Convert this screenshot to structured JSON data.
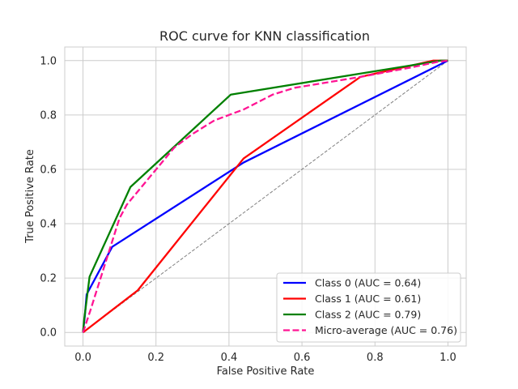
{
  "chart_data": {
    "type": "line",
    "title": "ROC curve for KNN classification",
    "xlabel": "False Positive Rate",
    "ylabel": "True Positive Rate",
    "xlim": [
      -0.05,
      1.05
    ],
    "ylim": [
      -0.05,
      1.05
    ],
    "xticks": [
      "0.0",
      "0.2",
      "0.4",
      "0.6",
      "0.8",
      "1.0"
    ],
    "yticks": [
      "0.0",
      "0.2",
      "0.4",
      "0.6",
      "0.8",
      "1.0"
    ],
    "grid": true,
    "legend_position": "lower right",
    "series": [
      {
        "name": "Class 0 (AUC = 0.64)",
        "color": "#0000ff",
        "dash": "solid",
        "points": [
          [
            0,
            0
          ],
          [
            0.005,
            0.06
          ],
          [
            0.01,
            0.14
          ],
          [
            0.08,
            0.315
          ],
          [
            0.44,
            0.625
          ],
          [
            1.0,
            1.0
          ]
        ]
      },
      {
        "name": "Class 1 (AUC = 0.61)",
        "color": "#ff0000",
        "dash": "solid",
        "points": [
          [
            0,
            0
          ],
          [
            0.15,
            0.155
          ],
          [
            0.44,
            0.64
          ],
          [
            0.76,
            0.94
          ],
          [
            0.96,
            1.0
          ],
          [
            1.0,
            1.0
          ]
        ]
      },
      {
        "name": "Class 2 (AUC = 0.79)",
        "color": "#008000",
        "dash": "solid",
        "points": [
          [
            0,
            0
          ],
          [
            0.003,
            0.045
          ],
          [
            0.018,
            0.205
          ],
          [
            0.13,
            0.535
          ],
          [
            0.405,
            0.875
          ],
          [
            0.98,
            1.0
          ],
          [
            1.0,
            1.0
          ]
        ]
      },
      {
        "name": "Micro-average (AUC = 0.76)",
        "color": "#ff1493",
        "dash": "dashed",
        "points": [
          [
            0,
            0
          ],
          [
            0.02,
            0.08
          ],
          [
            0.1,
            0.42
          ],
          [
            0.12,
            0.47
          ],
          [
            0.25,
            0.68
          ],
          [
            0.3,
            0.73
          ],
          [
            0.36,
            0.78
          ],
          [
            0.44,
            0.82
          ],
          [
            0.52,
            0.875
          ],
          [
            0.58,
            0.9
          ],
          [
            0.76,
            0.94
          ],
          [
            0.9,
            0.975
          ],
          [
            0.97,
            0.995
          ],
          [
            1.0,
            1.0
          ]
        ]
      }
    ],
    "reference_line": {
      "color": "#808080",
      "points": [
        [
          0,
          0
        ],
        [
          1,
          1
        ]
      ]
    }
  }
}
